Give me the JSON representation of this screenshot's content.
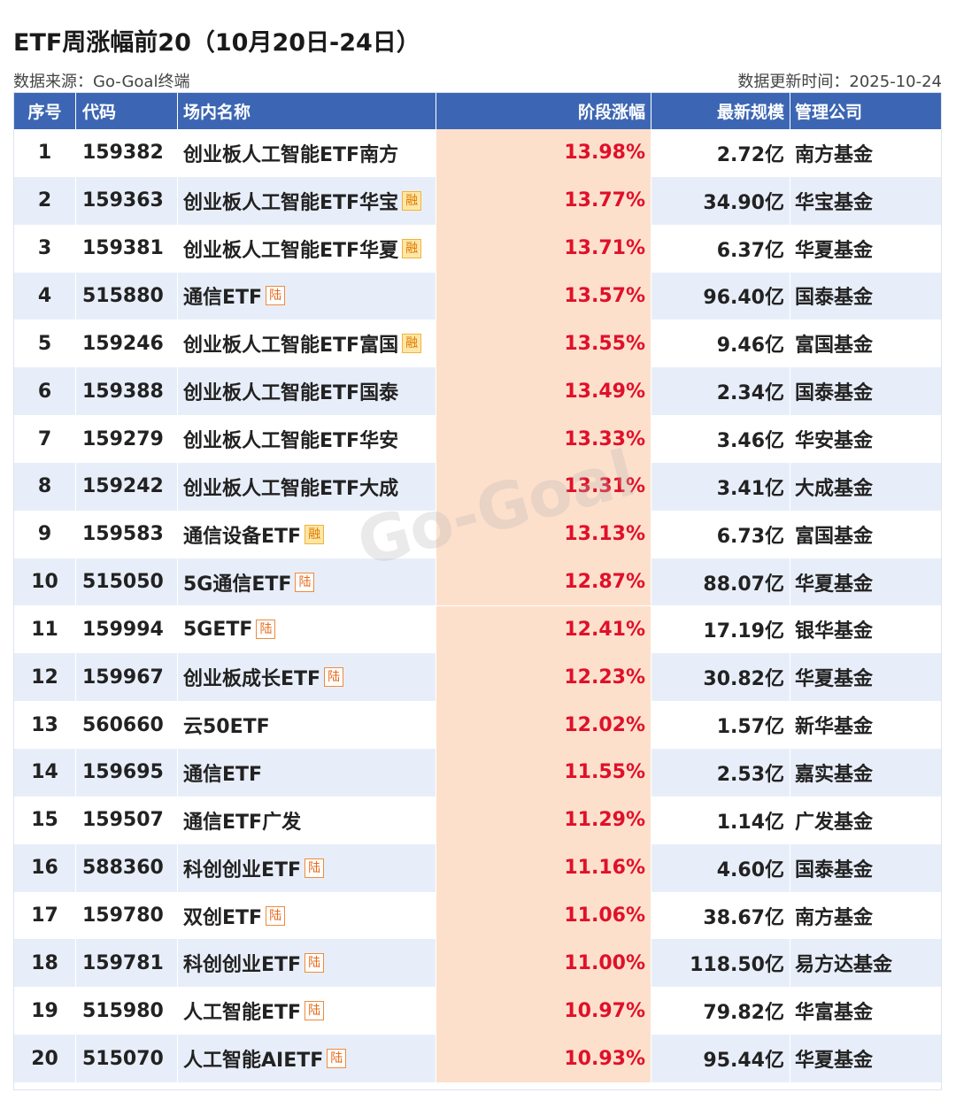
{
  "title": "ETF周涨幅前20（10月20日-24日）",
  "source": "数据来源：Go-Goal终端",
  "updated": "数据更新时间：2025-10-24",
  "watermark": "Go-Goal",
  "table": {
    "columns": [
      "序号",
      "代码",
      "场内名称",
      "阶段涨幅",
      "最新规模",
      "管理公司"
    ],
    "rows": [
      {
        "no": "1",
        "code": "159382",
        "name": "创业板人工智能ETF南方",
        "change": "13.98%",
        "size": "2.72亿",
        "company": "南方基金"
      },
      {
        "no": "2",
        "code": "159363",
        "name": "创业板人工智能ETF华宝",
        "badge": "融",
        "change": "13.77%",
        "size": "34.90亿",
        "company": "华宝基金"
      },
      {
        "no": "3",
        "code": "159381",
        "name": "创业板人工智能ETF华夏",
        "badge": "融",
        "change": "13.71%",
        "size": "6.37亿",
        "company": "华夏基金"
      },
      {
        "no": "4",
        "code": "515880",
        "name": "通信ETF",
        "badge": "陆",
        "change": "13.57%",
        "size": "96.40亿",
        "company": "国泰基金"
      },
      {
        "no": "5",
        "code": "159246",
        "name": "创业板人工智能ETF富国",
        "badge": "融",
        "change": "13.55%",
        "size": "9.46亿",
        "company": "富国基金"
      },
      {
        "no": "6",
        "code": "159388",
        "name": "创业板人工智能ETF国泰",
        "change": "13.49%",
        "size": "2.34亿",
        "company": "国泰基金"
      },
      {
        "no": "7",
        "code": "159279",
        "name": "创业板人工智能ETF华安",
        "change": "13.33%",
        "size": "3.46亿",
        "company": "华安基金"
      },
      {
        "no": "8",
        "code": "159242",
        "name": "创业板人工智能ETF大成",
        "change": "13.31%",
        "size": "3.41亿",
        "company": "大成基金"
      },
      {
        "no": "9",
        "code": "159583",
        "name": "通信设备ETF",
        "badge": "融",
        "change": "13.13%",
        "size": "6.73亿",
        "company": "富国基金"
      },
      {
        "no": "10",
        "code": "515050",
        "name": "5G通信ETF",
        "badge": "陆",
        "change": "12.87%",
        "size": "88.07亿",
        "company": "华夏基金"
      },
      {
        "no": "11",
        "code": "159994",
        "name": "5GETF",
        "badge": "陆",
        "change": "12.41%",
        "size": "17.19亿",
        "company": "银华基金"
      },
      {
        "no": "12",
        "code": "159967",
        "name": "创业板成长ETF",
        "badge": "陆",
        "change": "12.23%",
        "size": "30.82亿",
        "company": "华夏基金"
      },
      {
        "no": "13",
        "code": "560660",
        "name": "云50ETF",
        "change": "12.02%",
        "size": "1.57亿",
        "company": "新华基金"
      },
      {
        "no": "14",
        "code": "159695",
        "name": "通信ETF",
        "change": "11.55%",
        "size": "2.53亿",
        "company": "嘉实基金"
      },
      {
        "no": "15",
        "code": "159507",
        "name": "通信ETF广发",
        "change": "11.29%",
        "size": "1.14亿",
        "company": "广发基金"
      },
      {
        "no": "16",
        "code": "588360",
        "name": "科创创业ETF",
        "badge": "陆",
        "change": "11.16%",
        "size": "4.60亿",
        "company": "国泰基金"
      },
      {
        "no": "17",
        "code": "159780",
        "name": "双创ETF",
        "badge": "陆",
        "change": "11.06%",
        "size": "38.67亿",
        "company": "南方基金"
      },
      {
        "no": "18",
        "code": "159781",
        "name": "科创创业ETF",
        "badge": "陆",
        "change": "11.00%",
        "size": "118.50亿",
        "company": "易方达基金"
      },
      {
        "no": "19",
        "code": "515980",
        "name": "人工智能ETF",
        "badge": "陆",
        "change": "10.97%",
        "size": "79.82亿",
        "company": "华富基金"
      },
      {
        "no": "20",
        "code": "515070",
        "name": "人工智能AIETF",
        "badge": "陆",
        "change": "10.93%",
        "size": "95.44亿",
        "company": "华夏基金"
      }
    ]
  }
}
